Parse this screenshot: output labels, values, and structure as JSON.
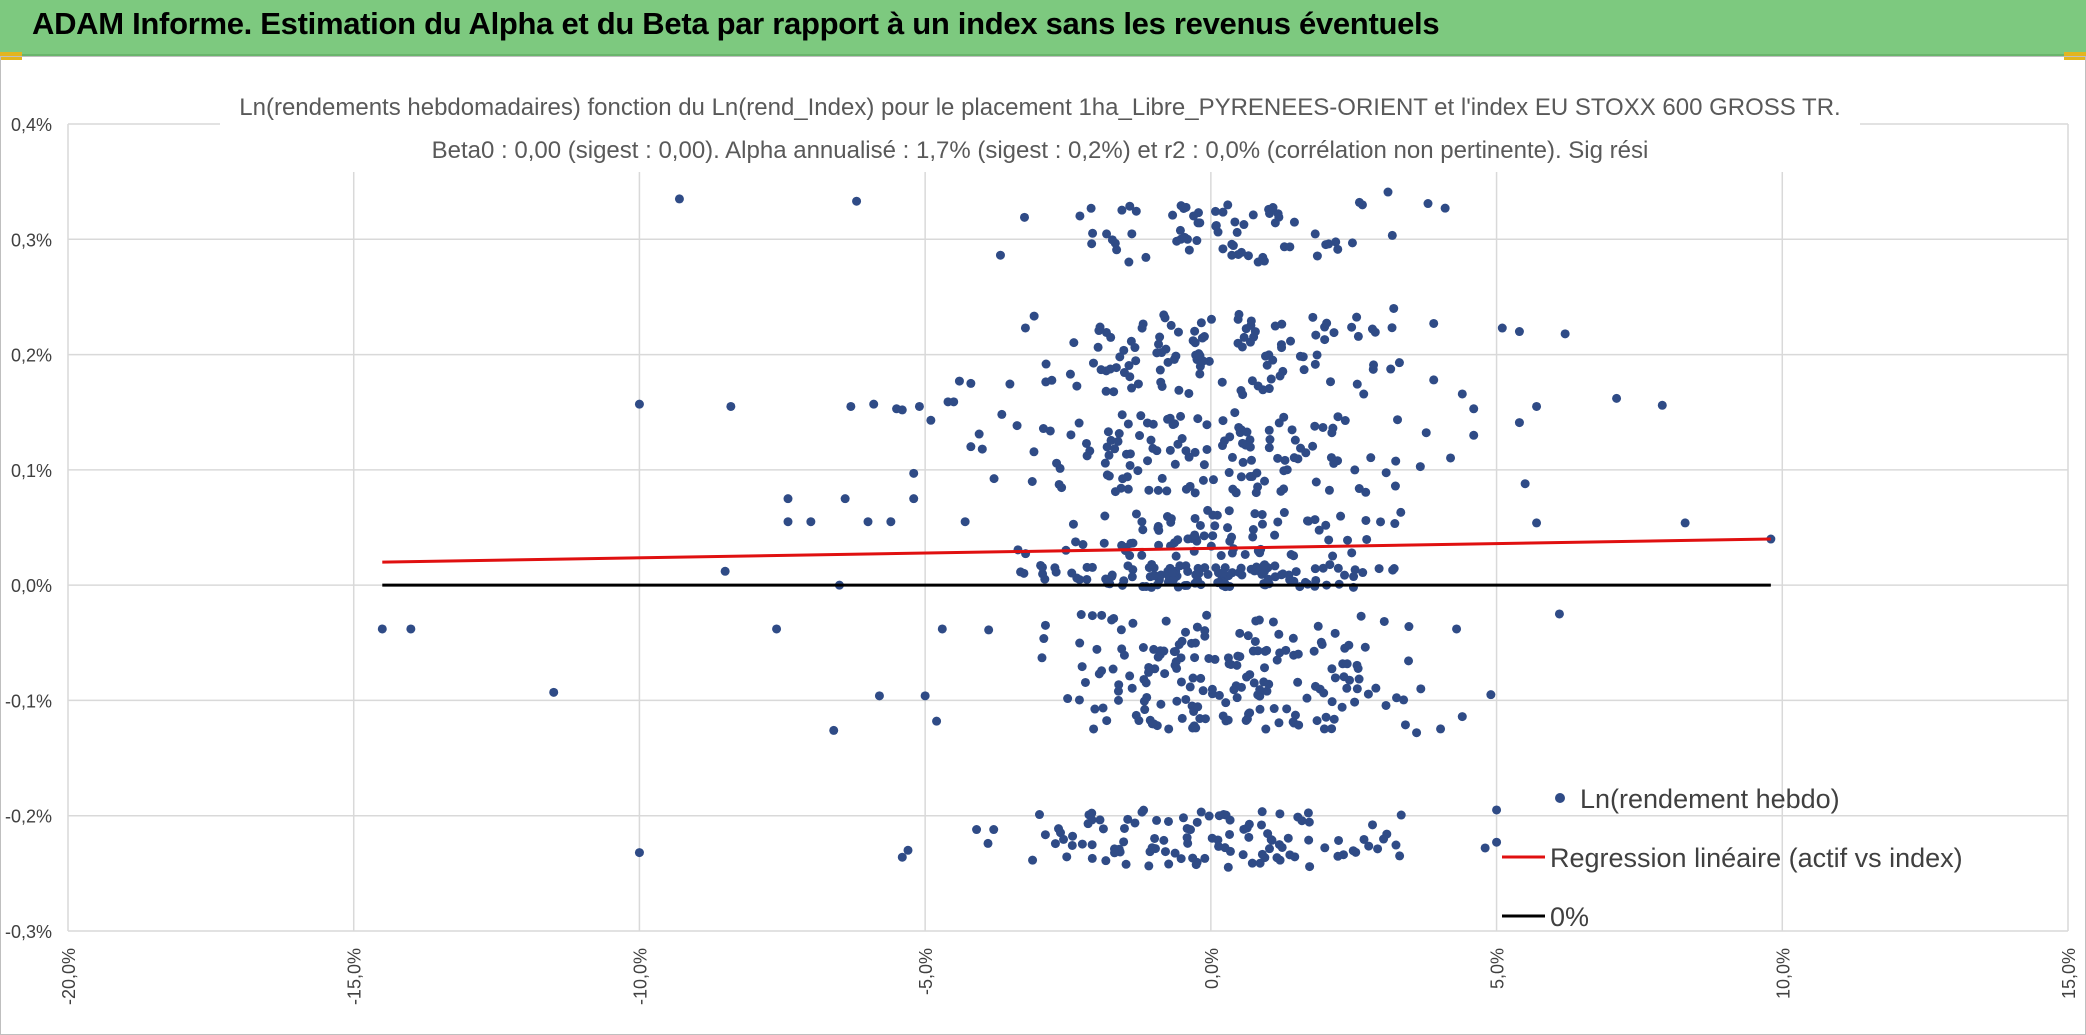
{
  "banner": {
    "title": "ADAM Informe. Estimation du Alpha et du Beta par rapport à un index sans les revenus éventuels"
  },
  "colors": {
    "banner": "#7dc97f",
    "points": "#2f4b86",
    "regression": "#e01010",
    "zero": "#000000",
    "grid": "#d9d9d9"
  },
  "chart_data": {
    "type": "scatter",
    "title": "Ln(rendements hebdomadaires) fonction du Ln(rend_Index) pour le placement 1ha_Libre_PYRENEES-ORIENT et l'index EU STOXX 600 GROSS TR.",
    "subtitle": "Beta0 : 0,00 (sigest : 0,00). Alpha annualisé : 1,7% (sigest : 0,2%) et r2 : 0,0% (corrélation non pertinente). Sig rési",
    "xlim": [
      -20,
      15
    ],
    "ylim": [
      -0.3,
      0.4
    ],
    "x_ticks": [
      "-20,0%",
      "-15,0%",
      "-10,0%",
      "-5,0%",
      "0,0%",
      "5,0%",
      "10,0%",
      "15,0%"
    ],
    "y_ticks": [
      "-0,3%",
      "-0,2%",
      "-0,1%",
      "0,0%",
      "0,1%",
      "0,2%",
      "0,3%",
      "0,4%"
    ],
    "grid": true,
    "legend_position": "bottom-right",
    "legend": [
      {
        "label": "Ln(rendement hebdo)",
        "kind": "point"
      },
      {
        "label": "Regression linéaire (actif vs index)",
        "kind": "red-line"
      },
      {
        "label": "0%",
        "kind": "black-line"
      }
    ],
    "series": [
      {
        "name": "Ln(rendement hebdo)",
        "style": "points",
        "points": [
          [
            -14.5,
            -0.038
          ],
          [
            -14.0,
            -0.038
          ],
          [
            -11.5,
            -0.093
          ],
          [
            -10.0,
            0.157
          ],
          [
            -10.0,
            -0.232
          ],
          [
            -9.3,
            0.335
          ],
          [
            -8.5,
            0.012
          ],
          [
            -8.4,
            0.155
          ],
          [
            -7.6,
            -0.038
          ],
          [
            -7.4,
            0.075
          ],
          [
            -7.4,
            0.055
          ],
          [
            -7.0,
            0.055
          ],
          [
            -6.6,
            -0.126
          ],
          [
            -6.5,
            0.0
          ],
          [
            -6.4,
            0.075
          ],
          [
            -6.3,
            0.155
          ],
          [
            -6.2,
            0.333
          ],
          [
            -6.0,
            0.055
          ],
          [
            -5.9,
            0.157
          ],
          [
            -5.8,
            -0.096
          ],
          [
            -5.6,
            0.055
          ],
          [
            -5.5,
            0.153
          ],
          [
            -5.4,
            0.152
          ],
          [
            -5.4,
            -0.236
          ],
          [
            -5.3,
            -0.23
          ],
          [
            -5.2,
            0.097
          ],
          [
            -5.2,
            0.075
          ],
          [
            -5.1,
            0.155
          ],
          [
            -5.0,
            -0.096
          ],
          [
            -4.9,
            0.143
          ],
          [
            -4.8,
            -0.118
          ],
          [
            -4.7,
            -0.038
          ],
          [
            -4.6,
            0.159
          ],
          [
            -4.5,
            0.159
          ],
          [
            -4.4,
            0.177
          ],
          [
            -4.3,
            0.055
          ],
          [
            -4.2,
            0.175
          ],
          [
            -4.1,
            -0.212
          ],
          [
            -4.0,
            0.118
          ],
          [
            -3.9,
            -0.224
          ],
          [
            -3.8,
            -0.212
          ],
          [
            9.8,
            0.04
          ],
          [
            8.3,
            0.054
          ],
          [
            7.9,
            0.156
          ],
          [
            7.1,
            0.162
          ],
          [
            6.2,
            0.218
          ],
          [
            6.1,
            -0.025
          ],
          [
            5.7,
            0.155
          ],
          [
            5.7,
            0.054
          ],
          [
            5.5,
            0.088
          ],
          [
            5.4,
            0.141
          ],
          [
            5.4,
            0.22
          ],
          [
            5.1,
            0.223
          ],
          [
            4.9,
            -0.095
          ],
          [
            5.0,
            -0.195
          ],
          [
            4.8,
            -0.228
          ],
          [
            5.0,
            -0.223
          ],
          [
            4.6,
            0.13
          ],
          [
            4.6,
            0.153
          ],
          [
            4.4,
            -0.114
          ],
          [
            4.3,
            -0.038
          ],
          [
            4.1,
            0.327
          ],
          [
            3.8,
            0.331
          ],
          [
            3.9,
            0.227
          ],
          [
            3.9,
            0.178
          ],
          [
            3.6,
            -0.128
          ],
          [
            3.3,
            0.193
          ],
          [
            3.2,
            0.24
          ],
          [
            2.6,
            0.332
          ],
          [
            3.1,
            0.341
          ]
        ]
      },
      {
        "name": "Regression linéaire (actif vs index)",
        "style": "line",
        "points": [
          [
            -14.5,
            0.02
          ],
          [
            9.8,
            0.04
          ]
        ]
      },
      {
        "name": "0%",
        "style": "line",
        "points": [
          [
            -14.5,
            0.0
          ],
          [
            9.8,
            0.0
          ]
        ]
      }
    ]
  }
}
